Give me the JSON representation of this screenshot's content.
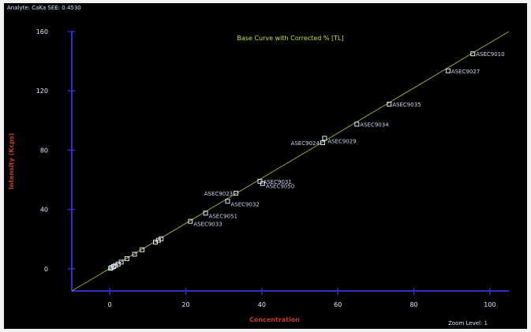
{
  "header_text": "Analyte: CaKa  SEE: 0.4530",
  "zoom_text": "Zoom Level: 1",
  "colors": {
    "background": "#000000",
    "axis": "#2c2fc8",
    "tick_label": "#e6e6ff",
    "title": "#b8e14a",
    "axis_label": "#c43a2c",
    "fit_line": "#8ea83a",
    "marker": "#dfe6f6",
    "point_label": "#c7d4f0"
  },
  "chart_data": {
    "type": "scatter",
    "title": "Base Curve with Corrected % [TL]",
    "xlabel": "Concentration",
    "ylabel": "Intensity    (Kcps)",
    "xlim": [
      -10,
      105
    ],
    "ylim": [
      -15,
      160
    ],
    "xticks": [
      0,
      20,
      40,
      60,
      80,
      100
    ],
    "yticks": [
      0,
      40,
      80,
      120,
      160
    ],
    "xtick_labels": [
      "0",
      "20",
      "40",
      "60",
      "80",
      "100"
    ],
    "ytick_labels": [
      "0",
      "40",
      "80",
      "120",
      "160"
    ],
    "grid": false,
    "fit_line": {
      "x": [
        -10,
        105
      ],
      "y": [
        -15,
        160
      ]
    },
    "points": [
      {
        "x": 0.2,
        "y": 0.3,
        "label": ""
      },
      {
        "x": 0.5,
        "y": 0.8,
        "label": ""
      },
      {
        "x": 1.0,
        "y": 1.5,
        "label": ""
      },
      {
        "x": 1.5,
        "y": 2.2,
        "label": ""
      },
      {
        "x": 2.2,
        "y": 3.2,
        "label": ""
      },
      {
        "x": 3.0,
        "y": 4.5,
        "label": ""
      },
      {
        "x": 4.5,
        "y": 6.8,
        "label": ""
      },
      {
        "x": 6.5,
        "y": 9.8,
        "label": ""
      },
      {
        "x": 8.5,
        "y": 12.8,
        "label": ""
      },
      {
        "x": 12.0,
        "y": 18.0,
        "label": ""
      },
      {
        "x": 12.8,
        "y": 19.2,
        "label": ""
      },
      {
        "x": 13.5,
        "y": 20.2,
        "label": ""
      },
      {
        "x": 21.2,
        "y": 32.0,
        "label": "ASEC9033"
      },
      {
        "x": 25.2,
        "y": 37.5,
        "label": "ASEC9051"
      },
      {
        "x": 31.0,
        "y": 45.5,
        "label": "ASEC9032"
      },
      {
        "x": 33.2,
        "y": 51.0,
        "label": "ASEC9023"
      },
      {
        "x": 39.5,
        "y": 59.0,
        "label": "ASEC9031"
      },
      {
        "x": 40.2,
        "y": 57.5,
        "label": "ASEC9050"
      },
      {
        "x": 56.0,
        "y": 85.0,
        "label": "ASEC9024"
      },
      {
        "x": 56.5,
        "y": 88.0,
        "label": "ASEC9029"
      },
      {
        "x": 65.0,
        "y": 97.5,
        "label": "ASEC9034"
      },
      {
        "x": 73.5,
        "y": 111.0,
        "label": "ASEC9035"
      },
      {
        "x": 89.0,
        "y": 133.5,
        "label": "ASEC9027"
      },
      {
        "x": 95.5,
        "y": 145.0,
        "label": "ASEC9010"
      }
    ]
  }
}
